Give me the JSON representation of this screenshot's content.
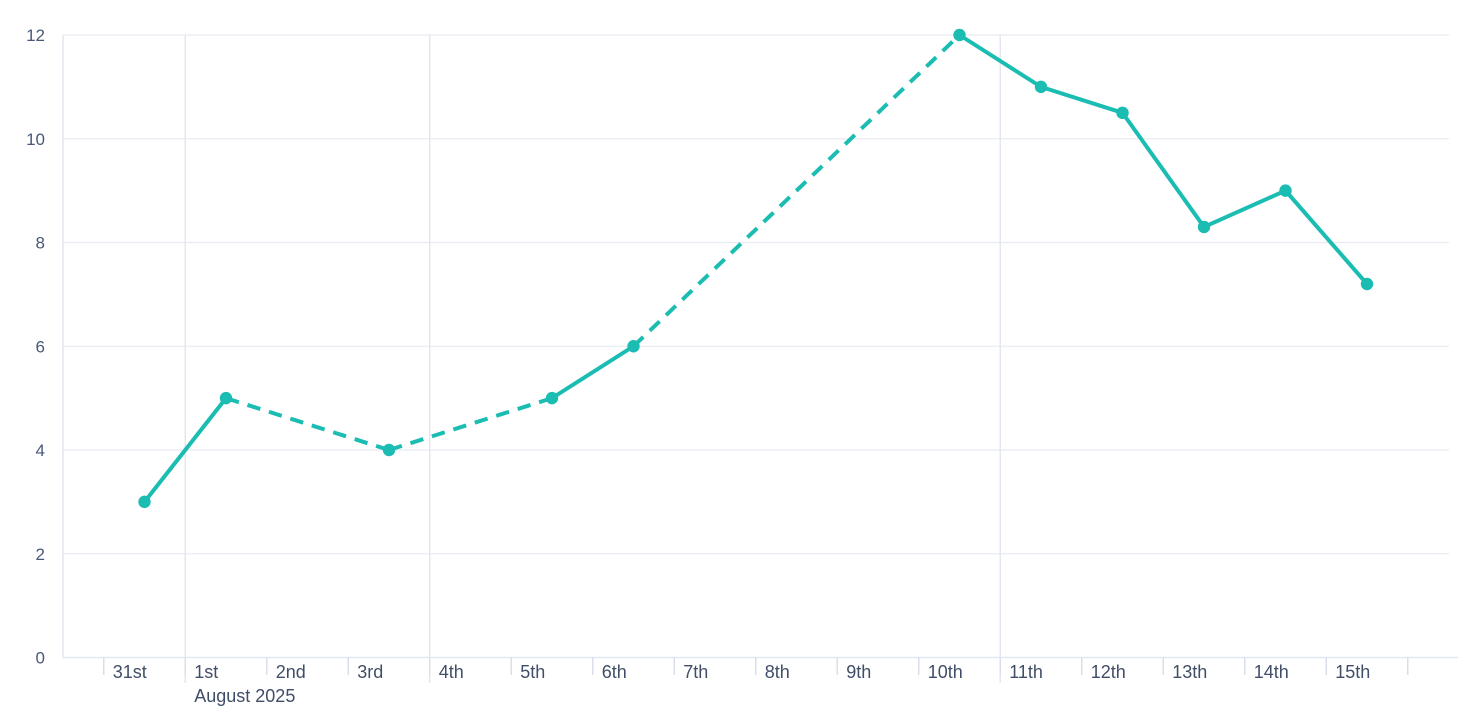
{
  "chart_data": {
    "type": "line",
    "title": "",
    "xlabel": "",
    "ylabel": "",
    "x_axis": {
      "tick_labels": [
        "31st",
        "1st",
        "2nd",
        "3rd",
        "4th",
        "5th",
        "6th",
        "7th",
        "8th",
        "9th",
        "10th",
        "11th",
        "12th",
        "13th",
        "14th",
        "15th"
      ],
      "month_label": "August 2025",
      "month_label_day_index": 1,
      "major_gridline_day_indices": [
        1,
        4,
        11
      ],
      "grid": "weekly-vertical-lines"
    },
    "y_axis": {
      "min": 0,
      "max": 12,
      "tick_interval": 2,
      "tick_labels": [
        "0",
        "2",
        "4",
        "6",
        "8",
        "10",
        "12"
      ],
      "grid": "on"
    },
    "series": [
      {
        "name": "daily-values",
        "color": "#1BBDB2",
        "marker": "circle",
        "dashed_when_day_gap_gt": 1,
        "points": [
          {
            "date_label": "31st",
            "day_index": 0,
            "value": 3
          },
          {
            "date_label": "1st",
            "day_index": 1,
            "value": 5
          },
          {
            "date_label": "3rd",
            "day_index": 3,
            "value": 4
          },
          {
            "date_label": "5th",
            "day_index": 5,
            "value": 5
          },
          {
            "date_label": "6th",
            "day_index": 6,
            "value": 6
          },
          {
            "date_label": "10th",
            "day_index": 10,
            "value": 12
          },
          {
            "date_label": "11th",
            "day_index": 11,
            "value": 11
          },
          {
            "date_label": "12th",
            "day_index": 12,
            "value": 10.5
          },
          {
            "date_label": "13th",
            "day_index": 13,
            "value": 8.3
          },
          {
            "date_label": "14th",
            "day_index": 14,
            "value": 9
          },
          {
            "date_label": "15th",
            "day_index": 15,
            "value": 7.2
          }
        ]
      }
    ],
    "legend": "off",
    "colors": {
      "line": "#1BBDB2",
      "h_gridline": "#E8EBF3",
      "v_gridline": "#E3E7F0",
      "axis_line": "#E4E8F1",
      "tick_mark": "#D9DFEA",
      "x_label": "#414E68",
      "y_label": "#4A5878",
      "background": "#FFFFFF"
    }
  }
}
